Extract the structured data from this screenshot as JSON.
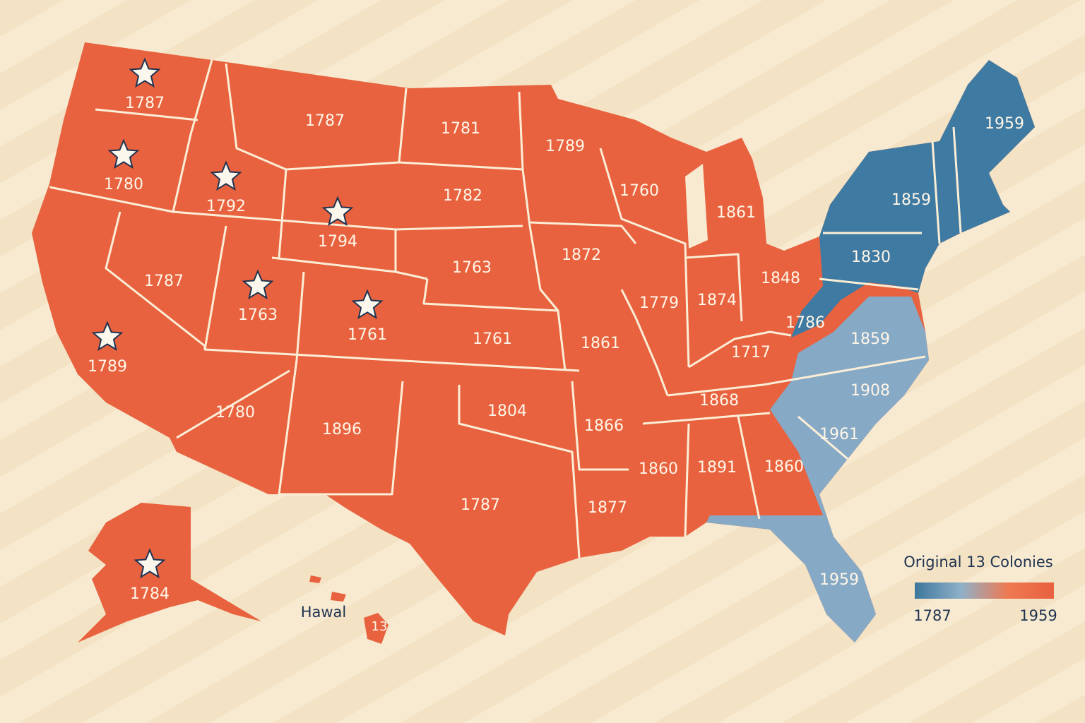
{
  "map": {
    "labels": [
      {
        "text": "1787",
        "star": true
      },
      {
        "text": "1780",
        "star": true
      },
      {
        "text": "1792",
        "star": true
      },
      {
        "text": "1787",
        "star": false
      },
      {
        "text": "1794",
        "star": true
      },
      {
        "text": "1781",
        "star": false
      },
      {
        "text": "1782",
        "star": false
      },
      {
        "text": "1789",
        "star": false
      },
      {
        "text": "1760",
        "star": false
      },
      {
        "text": "1861",
        "star": false
      },
      {
        "text": "1959",
        "star": false
      },
      {
        "text": "1859",
        "star": false
      },
      {
        "text": "1830",
        "star": false
      },
      {
        "text": "1787",
        "star": false
      },
      {
        "text": "1763",
        "star": true
      },
      {
        "text": "1761",
        "star": true
      },
      {
        "text": "1763",
        "star": false
      },
      {
        "text": "1872",
        "star": false
      },
      {
        "text": "1779",
        "star": false
      },
      {
        "text": "1874",
        "star": false
      },
      {
        "text": "1848",
        "star": false
      },
      {
        "text": "1786",
        "star": false
      },
      {
        "text": "1859",
        "star": false
      },
      {
        "text": "1789",
        "star": true
      },
      {
        "text": "1761",
        "star": false
      },
      {
        "text": "1861",
        "star": false
      },
      {
        "text": "1717",
        "star": false
      },
      {
        "text": "1908",
        "star": false
      },
      {
        "text": "1868",
        "star": false
      },
      {
        "text": "1780",
        "star": false
      },
      {
        "text": "1896",
        "star": false
      },
      {
        "text": "1804",
        "star": false
      },
      {
        "text": "1866",
        "star": false
      },
      {
        "text": "1961",
        "star": false
      },
      {
        "text": "1860",
        "star": false
      },
      {
        "text": "1891",
        "star": false
      },
      {
        "text": "1860",
        "star": false
      },
      {
        "text": "1787",
        "star": false
      },
      {
        "text": "1877",
        "star": false
      },
      {
        "text": "1959",
        "star": false
      },
      {
        "text": "1784",
        "star": true
      }
    ],
    "hawaii": {
      "name": "Hawal",
      "number": "13"
    },
    "legend": {
      "title": "Original 13 Colonies",
      "min_label": "1787",
      "max_label": "1959",
      "colors": [
        "#3d779d",
        "#8fb0c8",
        "#ee7a52",
        "#e8603f"
      ]
    },
    "colors": {
      "territory": "#e8623f",
      "northeast": "#3f7aa2",
      "southeast": "#86a9c6"
    }
  }
}
